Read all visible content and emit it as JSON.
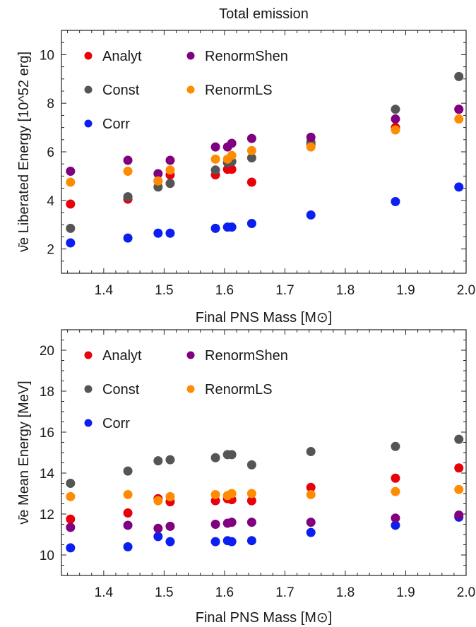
{
  "chart_data": [
    {
      "type": "scatter",
      "title": "Total emission",
      "xlabel": "Final PNS Mass [M⊙]",
      "ylabel": "ν̄e Liberated Energy [10^52 erg]",
      "xlim": [
        1.33,
        2.0
      ],
      "ylim": [
        1.0,
        11.0
      ],
      "xticks": [
        1.4,
        1.5,
        1.6,
        1.7,
        1.8,
        1.9,
        2.0
      ],
      "xtick_labels": [
        "1.4",
        "1.5",
        "1.6",
        "1.7",
        "1.8",
        "1.9",
        "2.0"
      ],
      "yticks": [
        2,
        4,
        6,
        8,
        10
      ],
      "ytick_labels": [
        "2",
        "4",
        "6",
        "8",
        "10"
      ],
      "grid": false,
      "legend_position": "top-left",
      "x": [
        1.345,
        1.44,
        1.49,
        1.51,
        1.585,
        1.605,
        1.612,
        1.645,
        1.743,
        1.883,
        1.988
      ],
      "series": [
        {
          "name": "Analyt",
          "color": "#e8000b",
          "values": [
            3.85,
            4.05,
            4.8,
            5.05,
            5.05,
            5.28,
            5.28,
            4.75,
            6.3,
            7.0,
            7.75
          ]
        },
        {
          "name": "Const",
          "color": "#555555",
          "values": [
            2.85,
            4.15,
            4.55,
            4.7,
            5.25,
            5.55,
            5.6,
            5.75,
            6.4,
            7.75,
            9.1
          ]
        },
        {
          "name": "Corr",
          "color": "#0a1ff0",
          "values": [
            2.25,
            2.45,
            2.65,
            2.65,
            2.85,
            2.9,
            2.9,
            3.05,
            3.4,
            3.95,
            4.55
          ]
        },
        {
          "name": "RenormShen",
          "color": "#800080",
          "values": [
            5.2,
            5.65,
            5.1,
            5.65,
            6.2,
            6.2,
            6.35,
            6.55,
            6.6,
            7.35,
            7.75
          ]
        },
        {
          "name": "RenormLS",
          "color": "#ff8c00",
          "values": [
            4.75,
            5.2,
            4.8,
            5.25,
            5.7,
            5.7,
            5.85,
            6.05,
            6.2,
            6.9,
            7.35
          ]
        }
      ]
    },
    {
      "type": "scatter",
      "title": "",
      "xlabel": "Final PNS Mass [M⊙]",
      "ylabel": "ν̄e Mean Energy [MeV]",
      "xlim": [
        1.33,
        2.0
      ],
      "ylim": [
        9.0,
        21.0
      ],
      "xticks": [
        1.4,
        1.5,
        1.6,
        1.7,
        1.8,
        1.9,
        2.0
      ],
      "xtick_labels": [
        "1.4",
        "1.5",
        "1.6",
        "1.7",
        "1.8",
        "1.9",
        "2.0"
      ],
      "yticks": [
        10,
        12,
        14,
        16,
        18,
        20
      ],
      "ytick_labels": [
        "10",
        "12",
        "14",
        "16",
        "18",
        "20"
      ],
      "grid": false,
      "legend_position": "top-left",
      "x": [
        1.345,
        1.44,
        1.49,
        1.51,
        1.585,
        1.605,
        1.612,
        1.645,
        1.743,
        1.883,
        1.988
      ],
      "series": [
        {
          "name": "Analyt",
          "color": "#e8000b",
          "values": [
            11.75,
            12.05,
            12.75,
            12.6,
            12.65,
            12.75,
            12.7,
            12.65,
            13.3,
            13.75,
            14.25
          ]
        },
        {
          "name": "Const",
          "color": "#555555",
          "values": [
            13.5,
            14.1,
            14.6,
            14.65,
            14.75,
            14.9,
            14.9,
            14.4,
            15.05,
            15.3,
            15.65
          ]
        },
        {
          "name": "Corr",
          "color": "#0a1ff0",
          "values": [
            10.35,
            10.4,
            10.9,
            10.65,
            10.65,
            10.7,
            10.65,
            10.7,
            11.1,
            11.45,
            11.85
          ]
        },
        {
          "name": "RenormShen",
          "color": "#800080",
          "values": [
            11.35,
            11.45,
            11.3,
            11.4,
            11.5,
            11.55,
            11.6,
            11.6,
            11.6,
            11.8,
            11.95
          ]
        },
        {
          "name": "RenormLS",
          "color": "#ff8c00",
          "values": [
            12.85,
            12.95,
            12.65,
            12.85,
            12.95,
            12.9,
            13.0,
            13.0,
            12.95,
            13.1,
            13.2
          ]
        }
      ]
    }
  ]
}
